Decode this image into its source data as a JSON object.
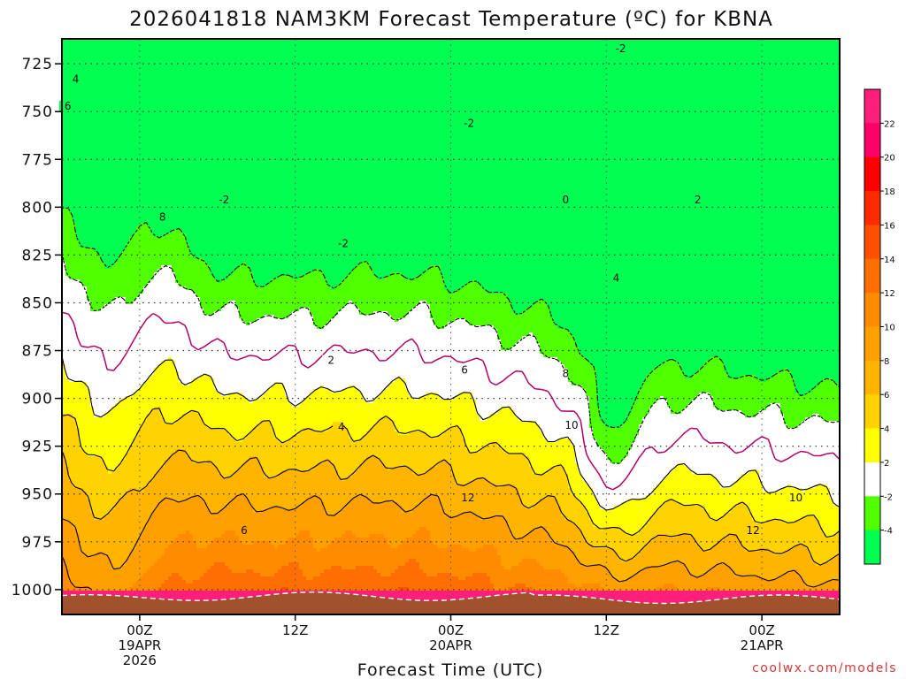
{
  "chart_data": {
    "type": "heatmap",
    "title": "2026041818 NAM3KM Forecast Temperature (ºC) for KBNA",
    "xlabel": "Forecast Time (UTC)",
    "ylabel": "",
    "credit": "coolwx.com/models",
    "y_axis": {
      "ticks": [
        725,
        750,
        775,
        800,
        825,
        850,
        875,
        900,
        925,
        950,
        975,
        1000
      ],
      "range": [
        1013,
        712
      ],
      "unit": "hPa"
    },
    "x_axis": {
      "range_hours": [
        -6,
        54
      ],
      "ticks": [
        {
          "hour": 0,
          "lines": [
            "00Z",
            "19APR",
            "2026"
          ]
        },
        {
          "hour": 12,
          "lines": [
            "12Z"
          ]
        },
        {
          "hour": 24,
          "lines": [
            "00Z",
            "20APR"
          ]
        },
        {
          "hour": 36,
          "lines": [
            "12Z"
          ]
        },
        {
          "hour": 48,
          "lines": [
            "00Z",
            "21APR"
          ]
        }
      ]
    },
    "colorbar": {
      "labels": [
        "22",
        "20",
        "18",
        "16",
        "14",
        "12",
        "10",
        "8",
        "6",
        "4",
        "2",
        "-2",
        "-4"
      ],
      "bands": [
        {
          "max": 99,
          "color": "#ff1e7a"
        },
        {
          "max": 22,
          "color": "#ff0066"
        },
        {
          "max": 20,
          "color": "#ff0000"
        },
        {
          "max": 18,
          "color": "#ff2a00"
        },
        {
          "max": 16,
          "color": "#ff5000"
        },
        {
          "max": 14,
          "color": "#ff6e00"
        },
        {
          "max": 12,
          "color": "#ff8c00"
        },
        {
          "max": 10,
          "color": "#ffa000"
        },
        {
          "max": 8,
          "color": "#ffb400"
        },
        {
          "max": 6,
          "color": "#ffd200"
        },
        {
          "max": 4,
          "color": "#ffff00"
        },
        {
          "max": 2,
          "color": "#ffffff"
        },
        {
          "max": -2,
          "color": "#50ff00"
        },
        {
          "max": -4,
          "color": "#00ff50"
        }
      ]
    },
    "ground_color": "#a0522d",
    "contour_labels": [
      {
        "v": "4",
        "h": -5.2,
        "p": 734,
        "c": "#000"
      },
      {
        "v": "6",
        "h": -5.8,
        "p": 748,
        "c": "#000"
      },
      {
        "v": "8",
        "h": 1.5,
        "p": 806,
        "c": "#000"
      },
      {
        "v": "-2",
        "h": 6.1,
        "p": 797,
        "c": "#000"
      },
      {
        "v": "-2",
        "h": 15.3,
        "p": 820,
        "c": "#000"
      },
      {
        "v": "-2",
        "h": 25.0,
        "p": 757,
        "c": "#000"
      },
      {
        "v": "-2",
        "h": 36.7,
        "p": 718,
        "c": "#000"
      },
      {
        "v": "0",
        "h": 32.6,
        "p": 797,
        "c": "#000"
      },
      {
        "v": "2",
        "h": 42.8,
        "p": 797,
        "c": "#000"
      },
      {
        "v": "2",
        "h": 14.5,
        "p": 881,
        "c": "#000"
      },
      {
        "v": "4",
        "h": 15.3,
        "p": 916,
        "c": "#000"
      },
      {
        "v": "4",
        "h": 36.5,
        "p": 838,
        "c": "#000"
      },
      {
        "v": "6",
        "h": 24.8,
        "p": 886,
        "c": "#000"
      },
      {
        "v": "6",
        "h": 7.8,
        "p": 970,
        "c": "#000"
      },
      {
        "v": "8",
        "h": 32.6,
        "p": 888,
        "c": "#000"
      },
      {
        "v": "10",
        "h": 32.8,
        "p": 915,
        "c": "#000"
      },
      {
        "v": "12",
        "h": 24.8,
        "p": 953,
        "c": "#000"
      },
      {
        "v": "12",
        "h": 46.8,
        "p": 970,
        "c": "#000"
      },
      {
        "v": "10",
        "h": 50.1,
        "p": 953,
        "c": "#000"
      }
    ]
  }
}
